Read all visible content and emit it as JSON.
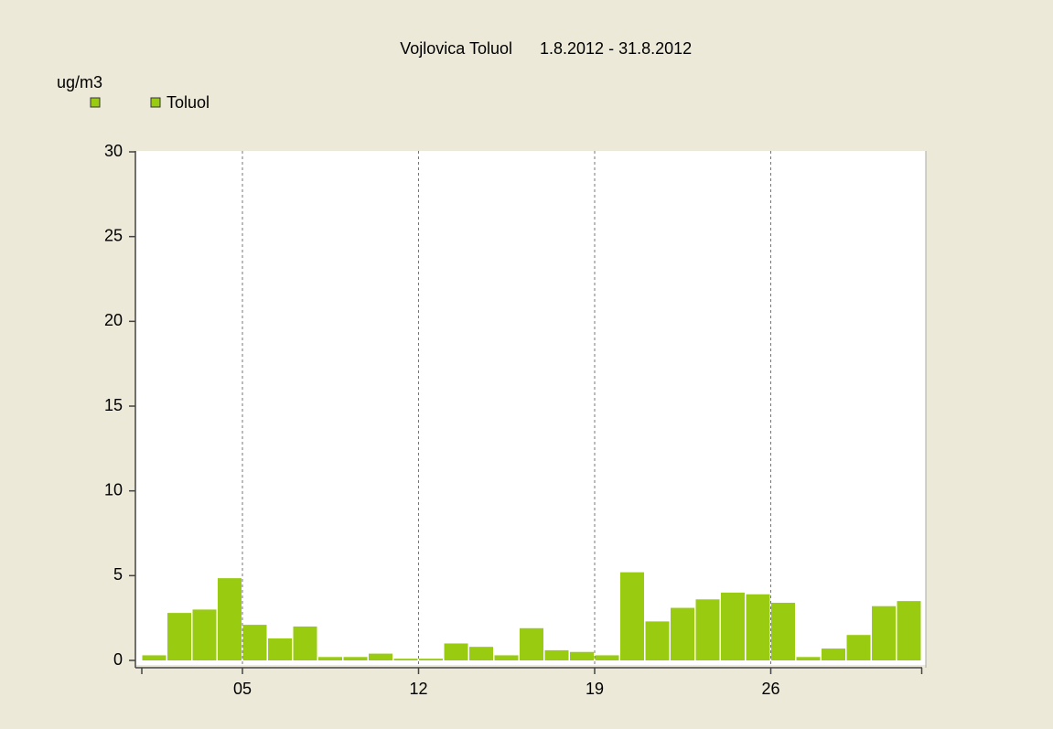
{
  "chart_data": {
    "type": "bar",
    "title": "Vojlovica Toluol",
    "subtitle": "1.8.2012 - 31.8.2012",
    "y_label": "ug/m3",
    "categories": [
      null,
      null,
      null,
      null,
      "05",
      null,
      null,
      null,
      null,
      null,
      null,
      "12",
      null,
      null,
      null,
      null,
      null,
      null,
      "19",
      null,
      null,
      null,
      null,
      null,
      null,
      "26",
      null,
      null,
      null,
      null,
      null
    ],
    "series": [
      {
        "name": "Toluol",
        "color": "#99cc11",
        "values": [
          0.3,
          2.8,
          3.0,
          4.85,
          2.1,
          1.3,
          2.0,
          0.2,
          0.2,
          0.4,
          0.1,
          0.1,
          1.0,
          0.8,
          0.3,
          1.9,
          0.6,
          0.5,
          0.3,
          5.2,
          2.3,
          3.1,
          3.6,
          4.0,
          3.9,
          3.4,
          0.2,
          0.7,
          1.5,
          3.2,
          3.5
        ]
      }
    ],
    "ylim": [
      0,
      30
    ],
    "yticks": [
      0,
      5,
      10,
      15,
      20,
      25,
      30
    ],
    "grid": true
  }
}
